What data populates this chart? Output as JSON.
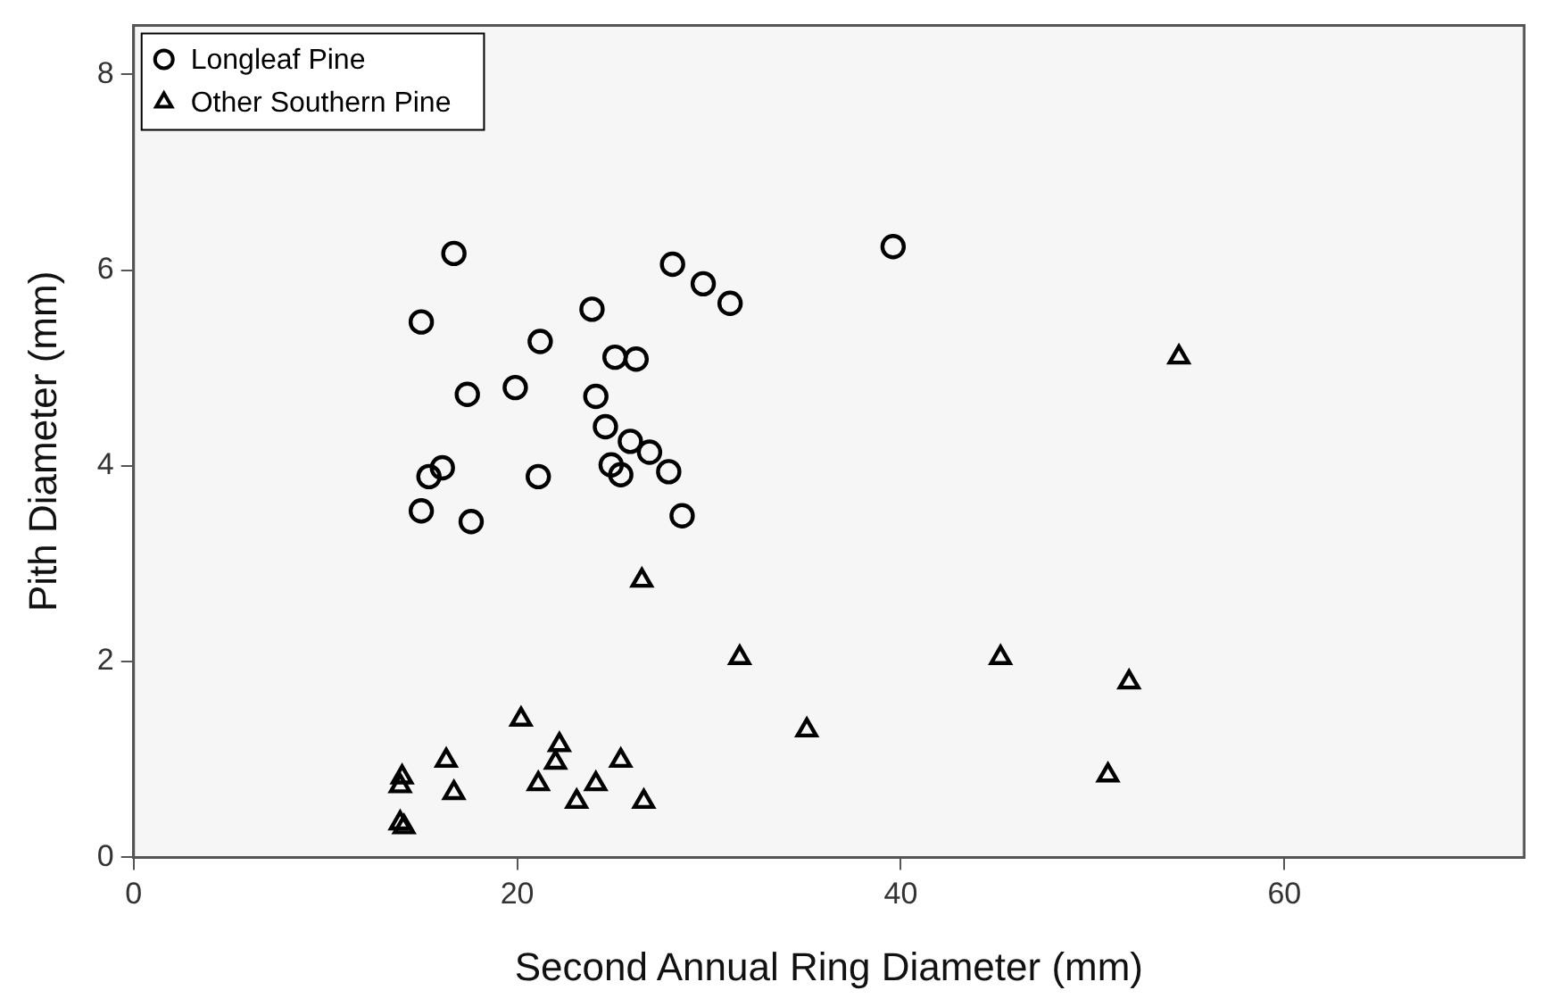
{
  "chart_data": {
    "type": "scatter",
    "xlabel": "Second Annual Ring Diameter (mm)",
    "ylabel": "Pith Diameter (mm)",
    "xlim": [
      0,
      72.5
    ],
    "ylim": [
      0,
      8.5
    ],
    "xticks": [
      0,
      20,
      40,
      60
    ],
    "yticks": [
      0,
      2,
      4,
      6,
      8
    ],
    "grid": false,
    "legend": "top left",
    "series": [
      {
        "name": "Longleaf Pine",
        "color": "#000000",
        "marker": "circle",
        "x": [
          16.7,
          15.0,
          28.1,
          29.7,
          31.1,
          23.9,
          21.2,
          25.1,
          26.2,
          19.9,
          17.4,
          24.1,
          24.6,
          25.9,
          26.9,
          16.1,
          15.4,
          24.9,
          25.4,
          27.9,
          21.1,
          15.0,
          17.6,
          28.6,
          39.6
        ],
        "values": [
          6.17,
          5.47,
          6.06,
          5.86,
          5.66,
          5.6,
          5.27,
          5.11,
          5.09,
          4.8,
          4.73,
          4.71,
          4.4,
          4.25,
          4.14,
          3.98,
          3.89,
          4.01,
          3.91,
          3.94,
          3.89,
          3.54,
          3.43,
          3.49,
          6.24
        ]
      },
      {
        "name": "Other Southern Pine",
        "color": "#000000",
        "marker": "triangle",
        "x": [
          54.5,
          26.5,
          31.6,
          45.2,
          51.9,
          20.2,
          35.1,
          22.2,
          22.0,
          16.3,
          25.4,
          50.8,
          14.0,
          13.9,
          21.1,
          24.1,
          16.7,
          23.1,
          26.6,
          13.9,
          14.1
        ],
        "values": [
          5.11,
          2.83,
          2.04,
          2.04,
          1.79,
          1.41,
          1.3,
          1.15,
          0.97,
          0.99,
          0.99,
          0.84,
          0.82,
          0.73,
          0.75,
          0.75,
          0.66,
          0.57,
          0.57,
          0.35,
          0.31
        ]
      }
    ]
  }
}
